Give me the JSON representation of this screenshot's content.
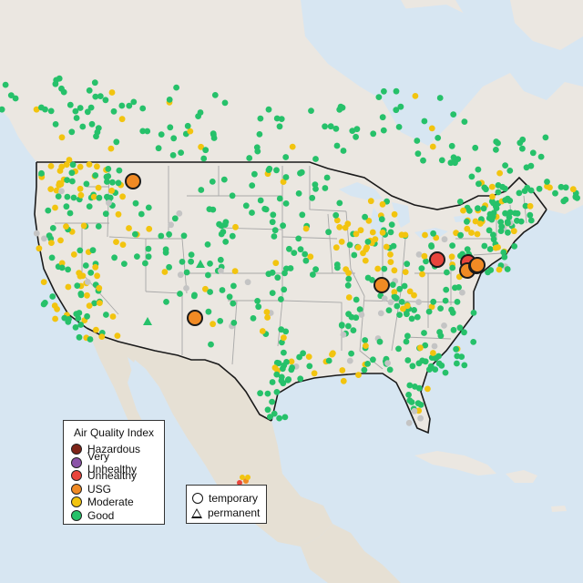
{
  "colors": {
    "water": "#d7e6f2",
    "land": "#ebe7e1",
    "mexico_terrain": "#e6e0d4",
    "state_border": "#a8a8a8",
    "national_border": "#1a1a1a",
    "hazardous": "#7e2418",
    "very_unhealthy": "#8b53a8",
    "unhealthy": "#e8453c",
    "usg": "#f08a24",
    "moderate": "#f2c40f",
    "good": "#26c16a",
    "no_data": "#c4c4c4"
  },
  "legend": {
    "title": "Air Quality Index",
    "categories": [
      {
        "label": "Hazardous",
        "color": "#7e2418"
      },
      {
        "label": "Very Unhealthy",
        "color": "#8b53a8"
      },
      {
        "label": "Unhealthy",
        "color": "#e8453c"
      },
      {
        "label": "USG",
        "color": "#f08a24"
      },
      {
        "label": "Moderate",
        "color": "#f2c40f"
      },
      {
        "label": "Good",
        "color": "#26c16a"
      }
    ]
  },
  "monitor_types": {
    "temporary": "temporary",
    "permanent": "permanent"
  },
  "large_markers": [
    {
      "category": "usg",
      "region": "western Montana"
    },
    {
      "category": "usg",
      "region": "northern New Mexico"
    },
    {
      "category": "usg",
      "region": "southern Illinois"
    },
    {
      "category": "unhealthy",
      "region": "Ohio"
    },
    {
      "category": "unhealthy",
      "region": "Pennsylvania"
    },
    {
      "category": "usg",
      "region": "Pennsylvania"
    },
    {
      "category": "usg",
      "region": "Pennsylvania"
    },
    {
      "category": "usg",
      "region": "Maryland"
    }
  ]
}
